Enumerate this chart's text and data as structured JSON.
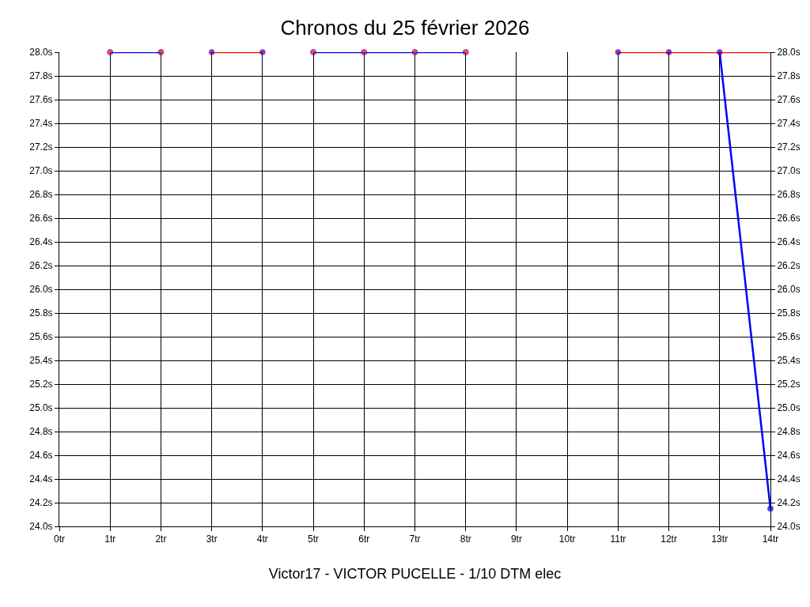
{
  "chart_data": {
    "type": "line",
    "title": "Chronos du 25 février 2026",
    "xlabel": "Victor17 - VICTOR PUCELLE - 1/10 DTM elec",
    "series": [
      {
        "x": [
          1,
          2
        ],
        "values": [
          28.0,
          28.0
        ],
        "color": "#0000ff",
        "colors": [
          "#ff0000",
          "#ff0000"
        ]
      },
      {
        "x": [
          3,
          4
        ],
        "values": [
          28.0,
          28.0
        ],
        "color": "#ff0000",
        "colors": [
          "#0000ff",
          "#0000ff"
        ]
      },
      {
        "x": [
          5,
          6,
          7,
          8
        ],
        "values": [
          28.0,
          28.0,
          28.0,
          28.0
        ],
        "color": "#0000ff",
        "colors": [
          "#ff0000",
          "#ff0000",
          "#ff0000",
          "#ff0000"
        ]
      },
      {
        "x": [
          11,
          12,
          13,
          14
        ],
        "values": [
          28.0,
          28.0,
          28.0,
          28.0
        ],
        "color": "#ff0000",
        "colors": [
          "#0000ff",
          "#0000ff",
          "#0000ff",
          null
        ]
      },
      {
        "x": [
          13,
          14
        ],
        "values": [
          28.0,
          24.15
        ],
        "color": "#0000ff",
        "colors": [
          null,
          "#0000ff"
        ]
      }
    ],
    "xlim": [
      0,
      14
    ],
    "xticks": [
      {
        "value": 0,
        "label": "0tr"
      },
      {
        "value": 1,
        "label": "1tr"
      },
      {
        "value": 2,
        "label": "2tr"
      },
      {
        "value": 3,
        "label": "3tr"
      },
      {
        "value": 4,
        "label": "4tr"
      },
      {
        "value": 5,
        "label": "5tr"
      },
      {
        "value": 6,
        "label": "6tr"
      },
      {
        "value": 7,
        "label": "7tr"
      },
      {
        "value": 8,
        "label": "8tr"
      },
      {
        "value": 9,
        "label": "9tr"
      },
      {
        "value": 10,
        "label": "10tr"
      },
      {
        "value": 11,
        "label": "11tr"
      },
      {
        "value": 12,
        "label": "12tr"
      },
      {
        "value": 13,
        "label": "13tr"
      },
      {
        "value": 14,
        "label": "14tr"
      }
    ],
    "ylim": [
      24.0,
      28.0
    ],
    "yticks": [
      {
        "value": 24.0,
        "label": "24.0s"
      },
      {
        "value": 24.2,
        "label": "24.2s"
      },
      {
        "value": 24.4,
        "label": "24.4s"
      },
      {
        "value": 24.6,
        "label": "24.6s"
      },
      {
        "value": 24.8,
        "label": "24.8s"
      },
      {
        "value": 25.0,
        "label": "25.0s"
      },
      {
        "value": 25.2,
        "label": "25.2s"
      },
      {
        "value": 25.4,
        "label": "25.4s"
      },
      {
        "value": 25.6,
        "label": "25.6s"
      },
      {
        "value": 25.8,
        "label": "25.8s"
      },
      {
        "value": 26.0,
        "label": "26.0s"
      },
      {
        "value": 26.2,
        "label": "26.2s"
      },
      {
        "value": 26.4,
        "label": "26.4s"
      },
      {
        "value": 26.6,
        "label": "26.6s"
      },
      {
        "value": 26.8,
        "label": "26.8s"
      },
      {
        "value": 27.0,
        "label": "27.0s"
      },
      {
        "value": 27.2,
        "label": "27.2s"
      },
      {
        "value": 27.4,
        "label": "27.4s"
      },
      {
        "value": 27.6,
        "label": "27.6s"
      },
      {
        "value": 27.8,
        "label": "27.8s"
      },
      {
        "value": 28.0,
        "label": "28.0s"
      }
    ],
    "y2lim": [
      24.0,
      28.0
    ],
    "y2ticks": [
      {
        "value": 24.0,
        "label": "24.0s"
      },
      {
        "value": 24.2,
        "label": "24.2s"
      },
      {
        "value": 24.4,
        "label": "24.4s"
      },
      {
        "value": 24.6,
        "label": "24.6s"
      },
      {
        "value": 24.8,
        "label": "24.8s"
      },
      {
        "value": 25.0,
        "label": "25.0s"
      },
      {
        "value": 25.2,
        "label": "25.2s"
      },
      {
        "value": 25.4,
        "label": "25.4s"
      },
      {
        "value": 25.6,
        "label": "25.6s"
      },
      {
        "value": 25.8,
        "label": "25.8s"
      },
      {
        "value": 26.0,
        "label": "26.0s"
      },
      {
        "value": 26.2,
        "label": "26.2s"
      },
      {
        "value": 26.4,
        "label": "26.4s"
      },
      {
        "value": 26.6,
        "label": "26.6s"
      },
      {
        "value": 26.8,
        "label": "26.8s"
      },
      {
        "value": 27.0,
        "label": "27.0s"
      },
      {
        "value": 27.2,
        "label": "27.2s"
      },
      {
        "value": 27.4,
        "label": "27.4s"
      },
      {
        "value": 27.6,
        "label": "27.6s"
      },
      {
        "value": 27.8,
        "label": "27.8s"
      },
      {
        "value": 28.0,
        "label": "28.0s"
      }
    ],
    "grid": true,
    "marker": "circle",
    "line_style": "solid"
  }
}
